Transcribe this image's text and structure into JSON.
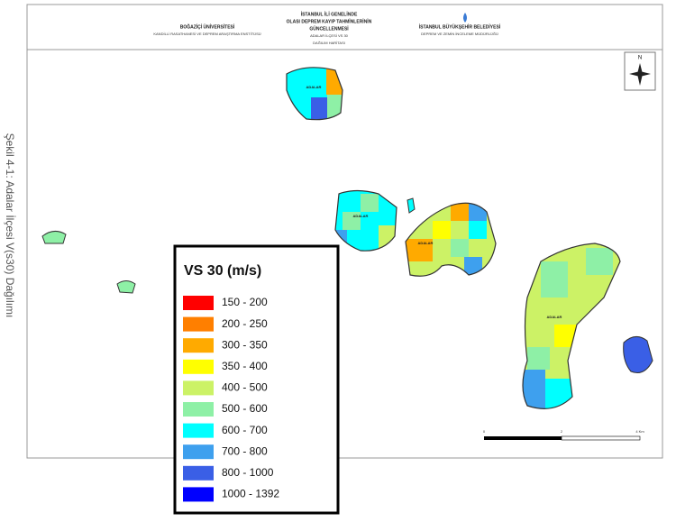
{
  "caption": "Şekil 4-1: Adalar İlçesi V(s30) Dağılımı",
  "header": {
    "left_title": "BOĞAZİÇİ ÜNİVERSİTESİ",
    "left_subtitle": "KANDİLLİ RASATHANESİ VE DEPREM ARAŞTIRMA ENSTİTÜSÜ",
    "center_lines": [
      "İSTANBUL İLİ GENELİNDE",
      "OLASI DEPREM KAYIP TAHMİNLERİNİN",
      "GÜNCELLENMESİ",
      "ADALAR İLÇESİ VS 30",
      "DAĞILIM HARİTASI"
    ],
    "right_title": "İSTANBUL BÜYÜKŞEHİR BELEDİYESİ",
    "right_subtitle": "DEPREM VE ZEMİN İNCELEME MÜDÜRLÜĞÜ"
  },
  "north": "N",
  "island_labels": [
    "ADALAR",
    "ADALAR",
    "ADALAR",
    "ADALAR"
  ],
  "scale_labels": [
    "0",
    "2",
    "4 Km"
  ],
  "legend": {
    "title": "VS 30 (m/s)",
    "items": [
      {
        "label": "150 - 200",
        "color": "#ff0000"
      },
      {
        "label": "200 - 250",
        "color": "#ff7f00"
      },
      {
        "label": "300 - 350",
        "color": "#ffaa00"
      },
      {
        "label": "350 - 400",
        "color": "#ffff00"
      },
      {
        "label": "400 - 500",
        "color": "#ccf266"
      },
      {
        "label": "500 - 600",
        "color": "#8ef0a6"
      },
      {
        "label": "600 - 700",
        "color": "#00ffff"
      },
      {
        "label": "700 - 800",
        "color": "#3ea0ee"
      },
      {
        "label": "800 - 1000",
        "color": "#3a5fe6"
      },
      {
        "label": "1000 - 1392",
        "color": "#0000ff"
      }
    ]
  }
}
